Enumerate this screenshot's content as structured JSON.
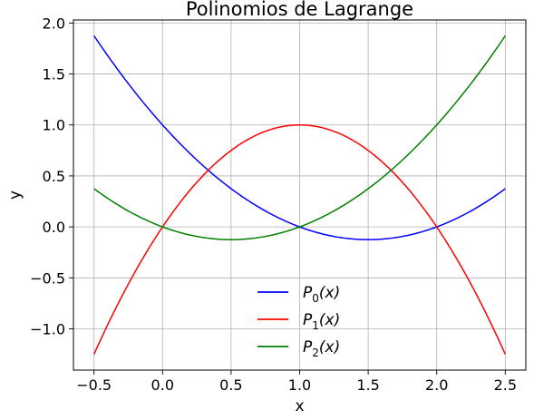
{
  "chart_data": {
    "type": "line",
    "title": "Polinomios de Lagrange",
    "xlabel": "x",
    "ylabel": "y",
    "xlim": [
      -0.65,
      2.65
    ],
    "ylim": [
      -1.405,
      2.03
    ],
    "xticks": [
      -0.5,
      0.0,
      0.5,
      1.0,
      1.5,
      2.0,
      2.5
    ],
    "xtick_labels": [
      "−0.5",
      "0.0",
      "0.5",
      "1.0",
      "1.5",
      "2.0",
      "2.5"
    ],
    "yticks": [
      -1.0,
      -0.5,
      0.0,
      0.5,
      1.0,
      1.5,
      2.0
    ],
    "ytick_labels": [
      "−1.0",
      "−0.5",
      "0.0",
      "0.5",
      "1.0",
      "1.5",
      "2.0"
    ],
    "grid": true,
    "legend_position": "lower center",
    "x": [
      -0.5,
      -0.25,
      0.0,
      0.25,
      0.5,
      0.75,
      1.0,
      1.25,
      1.5,
      1.75,
      2.0,
      2.25,
      2.5
    ],
    "series": [
      {
        "name": "P_0(x)",
        "legend_main": "P",
        "legend_sub": "0",
        "legend_tail": "(x)",
        "color": "#0000ff",
        "values": [
          1.875,
          1.40625,
          1.0,
          0.65625,
          0.375,
          0.15625,
          0.0,
          -0.09375,
          -0.125,
          -0.09375,
          0.0,
          0.15625,
          0.375
        ]
      },
      {
        "name": "P_1(x)",
        "legend_main": "P",
        "legend_sub": "1",
        "legend_tail": "(x)",
        "color": "#ff0000",
        "values": [
          -1.25,
          -0.5625,
          0.0,
          0.4375,
          0.75,
          0.9375,
          1.0,
          0.9375,
          0.75,
          0.4375,
          0.0,
          -0.5625,
          -1.25
        ]
      },
      {
        "name": "P_2(x)",
        "legend_main": "P",
        "legend_sub": "2",
        "legend_tail": "(x)",
        "color": "#008000",
        "values": [
          0.375,
          0.15625,
          0.0,
          -0.09375,
          -0.125,
          -0.09375,
          0.0,
          0.15625,
          0.375,
          0.65625,
          1.0,
          1.40625,
          1.875
        ]
      }
    ]
  }
}
